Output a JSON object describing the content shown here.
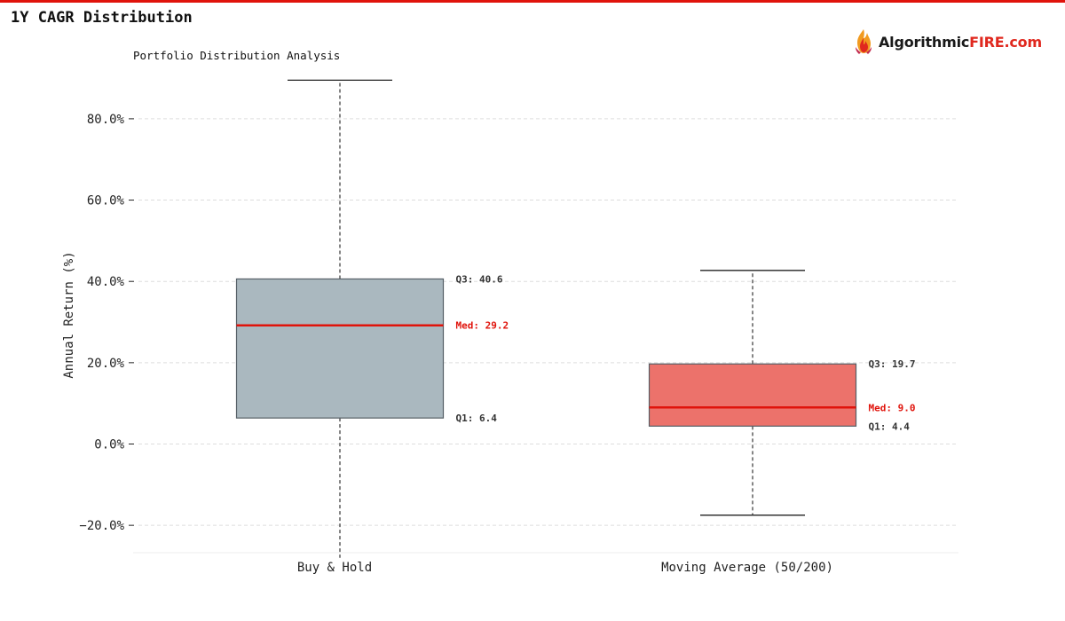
{
  "page": {
    "title": "1Y CAGR Distribution",
    "accent": "#e0130b"
  },
  "logo": {
    "text_a": "Algorithmic",
    "text_b": "FIRE.com",
    "icon": "fire-icon"
  },
  "chart_data": {
    "type": "box",
    "subtitle": "Portfolio Distribution Analysis",
    "ylabel": "Annual Return (%)",
    "xlabel": "",
    "ylim": [
      -27,
      90
    ],
    "yticks": [
      -20,
      0,
      20,
      40,
      60,
      80
    ],
    "ytick_labels": [
      "−20.0%",
      "0.0%",
      "20.0%",
      "40.0%",
      "60.0%",
      "80.0%"
    ],
    "grid": true,
    "categories": [
      "Buy & Hold",
      "Moving Average (50/200)"
    ],
    "boxes": [
      {
        "category": "Buy & Hold",
        "whisker_low": -28,
        "q1": 6.4,
        "median": 29.2,
        "q3": 40.6,
        "whisker_high": 89.5,
        "color": "#aab8bf",
        "labels": {
          "q3": "Q3: 40.6",
          "median": "Med: 29.2",
          "q1": "Q1: 6.4"
        }
      },
      {
        "category": "Moving Average (50/200)",
        "whisker_low": -17.5,
        "q1": 4.4,
        "median": 9.0,
        "q3": 19.7,
        "whisker_high": 42.7,
        "color": "#ec726b",
        "labels": {
          "q3": "Q3: 19.7",
          "median": "Med: 9.0",
          "q1": "Q1: 4.4"
        }
      }
    ],
    "colors": {
      "median_line": "#e0130b",
      "box_edge": "#555f66",
      "whisker": "#222222",
      "grid": "#dddddd",
      "axis_text": "#222222"
    }
  }
}
